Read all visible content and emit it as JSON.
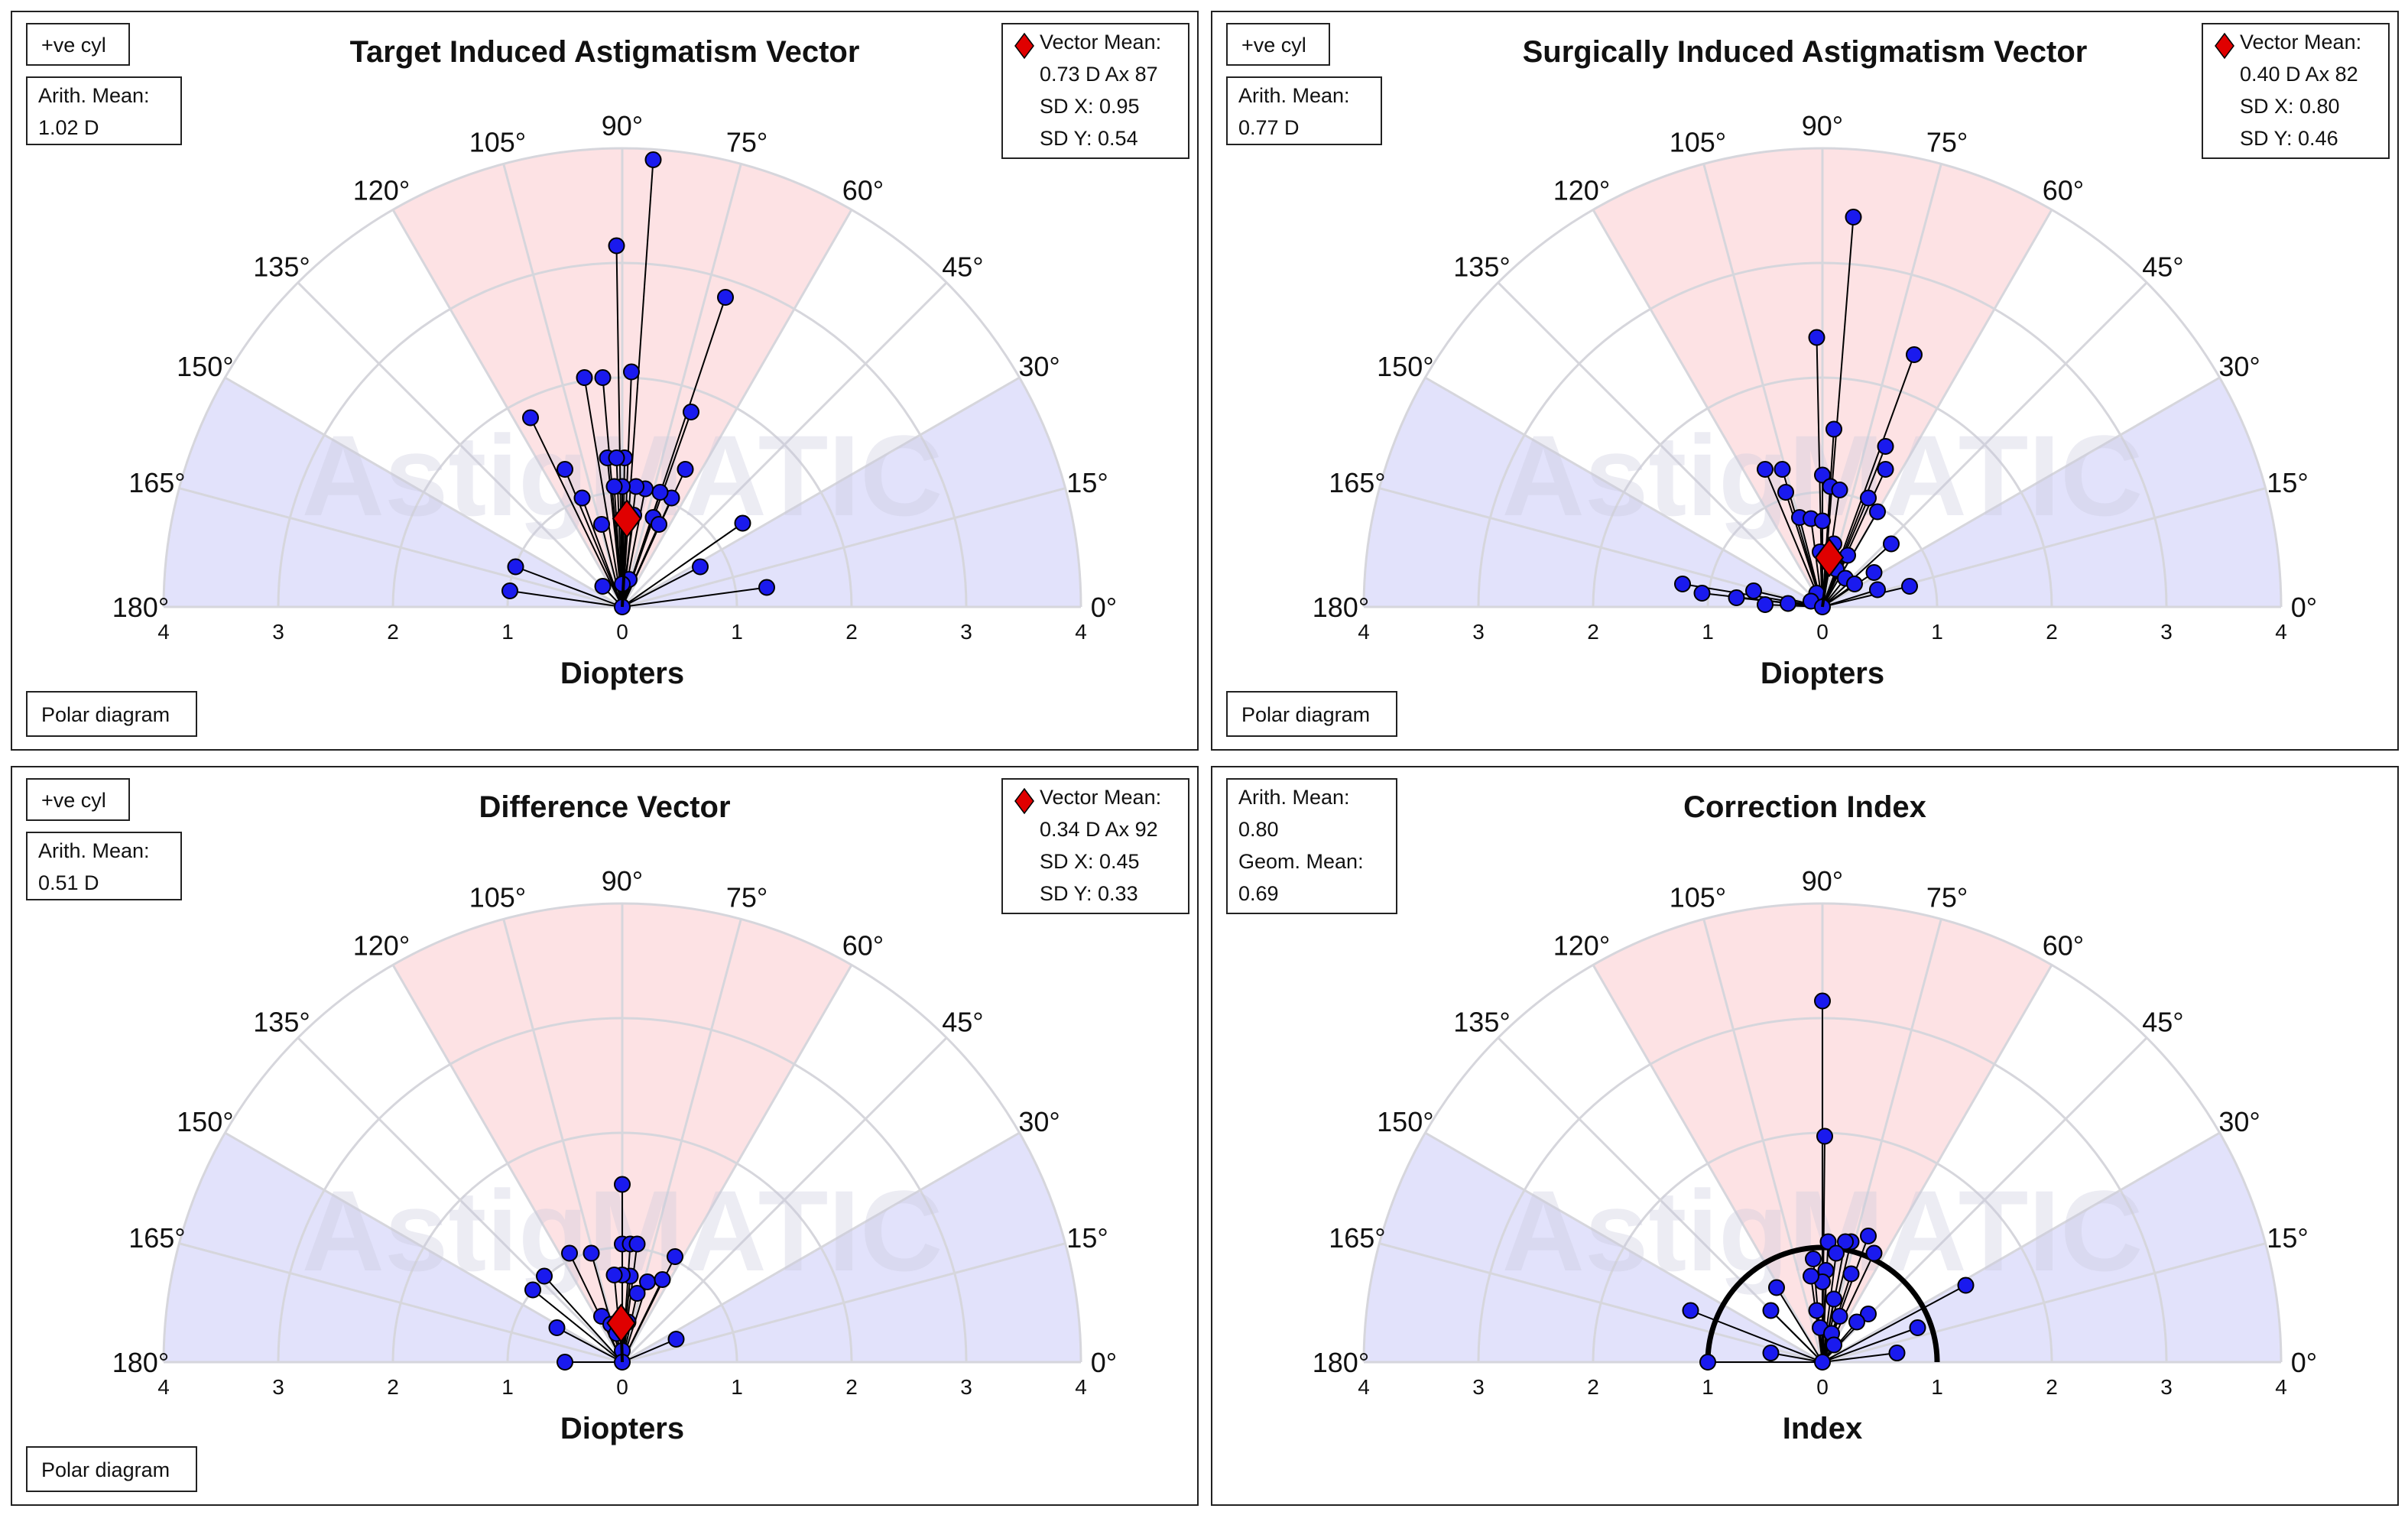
{
  "panels": [
    {
      "id": "tia",
      "title": "Target Induced Astigmatism Vector",
      "cyl_label": "+ve cyl",
      "mean_box": [
        "Arith. Mean:",
        "1.02 D"
      ],
      "vector_box": [
        "Vector Mean:",
        "0.73 D Ax 87",
        "SD X: 0.95",
        "SD Y: 0.54"
      ],
      "footer": "Polar diagram",
      "xlabel": "Diopters"
    },
    {
      "id": "sia",
      "title": "Surgically Induced Astigmatism Vector",
      "cyl_label": "+ve cyl",
      "mean_box": [
        "Arith. Mean:",
        "0.77 D"
      ],
      "vector_box": [
        "Vector Mean:",
        "0.40 D Ax 82",
        "SD X: 0.80",
        "SD Y: 0.46"
      ],
      "footer": "Polar diagram",
      "xlabel": "Diopters"
    },
    {
      "id": "dv",
      "title": "Difference Vector",
      "cyl_label": "+ve cyl",
      "mean_box": [
        "Arith. Mean:",
        "0.51 D"
      ],
      "vector_box": [
        "Vector Mean:",
        "0.34 D Ax 92",
        "SD X: 0.45",
        "SD Y: 0.33"
      ],
      "footer": "Polar diagram",
      "xlabel": "Diopters"
    },
    {
      "id": "ci",
      "title": "Correction Index",
      "mean_box": [
        "Arith. Mean:",
        "0.80",
        "Geom. Mean:",
        "0.69"
      ],
      "xlabel": "Index"
    }
  ],
  "watermark": "AstigMATIC",
  "colors": {
    "point": "#1a1aee",
    "mean_marker": "#e00000",
    "pink_sector": "#fde2e4",
    "blue_sector": "#e2e2fb",
    "grid": "#d6d6dc"
  },
  "chart_data": [
    {
      "type": "scatter",
      "coordinate_system": "polar half-plane, angle = axis in degrees (0-180), radius in diopters",
      "title": "Target Induced Astigmatism Vector",
      "xlabel": "Diopters",
      "r_range": [
        0,
        4
      ],
      "x_ticks": [
        "4",
        "3",
        "2",
        "1",
        "0",
        "1",
        "2",
        "3",
        "4"
      ],
      "angle_ticks": [
        "0°",
        "15°",
        "30°",
        "45°",
        "60°",
        "75°",
        "90°",
        "105°",
        "120°",
        "135°",
        "150°",
        "165°",
        "180°"
      ],
      "shaded_sectors": [
        {
          "from_deg": 60,
          "to_deg": 120,
          "color": "pink"
        },
        {
          "from_deg": 0,
          "to_deg": 30,
          "color": "blue"
        },
        {
          "from_deg": 150,
          "to_deg": 180,
          "color": "blue"
        }
      ],
      "points": [
        [
          0.27,
          3.9
        ],
        [
          -0.05,
          3.15
        ],
        [
          0.9,
          2.7
        ],
        [
          -0.33,
          2.0
        ],
        [
          -0.17,
          2.0
        ],
        [
          0.08,
          2.05
        ],
        [
          0.6,
          1.7
        ],
        [
          -0.8,
          1.65
        ],
        [
          -0.5,
          1.2
        ],
        [
          0.55,
          1.2
        ],
        [
          -0.13,
          1.3
        ],
        [
          0.02,
          1.3
        ],
        [
          -0.05,
          1.3
        ],
        [
          0.43,
          0.95
        ],
        [
          0.33,
          1.0
        ],
        [
          -0.35,
          0.95
        ],
        [
          0.2,
          1.03
        ],
        [
          0.12,
          1.05
        ],
        [
          0.0,
          1.05
        ],
        [
          -0.07,
          1.05
        ],
        [
          0.27,
          0.78
        ],
        [
          0.1,
          0.8
        ],
        [
          0.32,
          0.72
        ],
        [
          -0.18,
          0.72
        ],
        [
          1.05,
          0.73
        ],
        [
          -0.93,
          0.35
        ],
        [
          0.68,
          0.35
        ],
        [
          0.06,
          0.24
        ],
        [
          0.0,
          0.2
        ],
        [
          -0.17,
          0.18
        ],
        [
          -0.98,
          0.14
        ],
        [
          1.26,
          0.17
        ],
        [
          0.0,
          0.0
        ]
      ],
      "vector_mean": {
        "x": 0.04,
        "y": 0.77,
        "label": "0.73 D Ax 87"
      }
    },
    {
      "type": "scatter",
      "coordinate_system": "polar half-plane, angle = axis in degrees (0-180), radius in diopters",
      "title": "Surgically Induced Astigmatism Vector",
      "xlabel": "Diopters",
      "r_range": [
        0,
        4
      ],
      "x_ticks": [
        "4",
        "3",
        "2",
        "1",
        "0",
        "1",
        "2",
        "3",
        "4"
      ],
      "angle_ticks": [
        "0°",
        "15°",
        "30°",
        "45°",
        "60°",
        "75°",
        "90°",
        "105°",
        "120°",
        "135°",
        "150°",
        "165°",
        "180°"
      ],
      "shaded_sectors": [
        {
          "from_deg": 60,
          "to_deg": 120,
          "color": "pink"
        },
        {
          "from_deg": 0,
          "to_deg": 30,
          "color": "blue"
        },
        {
          "from_deg": 150,
          "to_deg": 180,
          "color": "blue"
        }
      ],
      "points": [
        [
          0.27,
          3.4
        ],
        [
          -0.05,
          2.35
        ],
        [
          0.8,
          2.2
        ],
        [
          0.1,
          1.55
        ],
        [
          0.55,
          1.4
        ],
        [
          0.55,
          1.2
        ],
        [
          -0.5,
          1.2
        ],
        [
          -0.35,
          1.2
        ],
        [
          0.0,
          1.15
        ],
        [
          0.07,
          1.05
        ],
        [
          0.15,
          1.02
        ],
        [
          -0.32,
          1.0
        ],
        [
          0.4,
          0.95
        ],
        [
          0.48,
          0.83
        ],
        [
          -0.2,
          0.78
        ],
        [
          -0.1,
          0.77
        ],
        [
          0.0,
          0.75
        ],
        [
          0.1,
          0.55
        ],
        [
          0.6,
          0.55
        ],
        [
          0.22,
          0.45
        ],
        [
          -0.02,
          0.48
        ],
        [
          0.12,
          0.33
        ],
        [
          0.2,
          0.25
        ],
        [
          0.45,
          0.3
        ],
        [
          0.28,
          0.2
        ],
        [
          0.48,
          0.15
        ],
        [
          -0.05,
          0.12
        ],
        [
          -0.6,
          0.14
        ],
        [
          0.76,
          0.18
        ],
        [
          -1.22,
          0.2
        ],
        [
          -1.05,
          0.12
        ],
        [
          -0.75,
          0.08
        ],
        [
          -0.5,
          0.02
        ],
        [
          -0.3,
          0.03
        ],
        [
          -0.1,
          0.05
        ],
        [
          0.0,
          0.0
        ]
      ],
      "vector_mean": {
        "x": 0.06,
        "y": 0.43,
        "label": "0.40 D Ax 82"
      }
    },
    {
      "type": "scatter",
      "coordinate_system": "polar half-plane, angle = axis in degrees (0-180), radius in diopters",
      "title": "Difference Vector",
      "xlabel": "Diopters",
      "r_range": [
        0,
        4
      ],
      "x_ticks": [
        "4",
        "3",
        "2",
        "1",
        "0",
        "1",
        "2",
        "3",
        "4"
      ],
      "angle_ticks": [
        "0°",
        "15°",
        "30°",
        "45°",
        "60°",
        "75°",
        "90°",
        "105°",
        "120°",
        "135°",
        "150°",
        "165°",
        "180°"
      ],
      "shaded_sectors": [
        {
          "from_deg": 60,
          "to_deg": 120,
          "color": "pink"
        },
        {
          "from_deg": 0,
          "to_deg": 30,
          "color": "blue"
        },
        {
          "from_deg": 150,
          "to_deg": 180,
          "color": "blue"
        }
      ],
      "points": [
        [
          0.0,
          1.55
        ],
        [
          -0.46,
          0.95
        ],
        [
          -0.27,
          0.95
        ],
        [
          0.0,
          1.03
        ],
        [
          0.07,
          1.03
        ],
        [
          0.13,
          1.03
        ],
        [
          0.46,
          0.92
        ],
        [
          0.07,
          0.75
        ],
        [
          0.0,
          0.76
        ],
        [
          -0.07,
          0.76
        ],
        [
          0.13,
          0.6
        ],
        [
          0.22,
          0.7
        ],
        [
          0.35,
          0.72
        ],
        [
          -0.68,
          0.75
        ],
        [
          -0.78,
          0.63
        ],
        [
          -0.57,
          0.3
        ],
        [
          -0.18,
          0.4
        ],
        [
          -0.1,
          0.33
        ],
        [
          0.05,
          0.35
        ],
        [
          -0.05,
          0.25
        ],
        [
          0.47,
          0.2
        ],
        [
          0.0,
          0.1
        ],
        [
          -0.5,
          0.0
        ],
        [
          0.0,
          0.0
        ]
      ],
      "vector_mean": {
        "x": -0.01,
        "y": 0.34,
        "label": "0.34 D Ax 92"
      }
    },
    {
      "type": "scatter",
      "coordinate_system": "polar half-plane, angle in degrees (0-180), radius = correction index",
      "title": "Correction Index",
      "xlabel": "Index",
      "r_range": [
        0,
        4
      ],
      "x_ticks": [
        "4",
        "3",
        "2",
        "1",
        "0",
        "1",
        "2",
        "3",
        "4"
      ],
      "angle_ticks": [
        "0°",
        "15°",
        "30°",
        "45°",
        "60°",
        "75°",
        "90°",
        "105°",
        "120°",
        "135°",
        "150°",
        "165°",
        "180°"
      ],
      "shaded_sectors": [
        {
          "from_deg": 60,
          "to_deg": 120,
          "color": "pink"
        },
        {
          "from_deg": 0,
          "to_deg": 30,
          "color": "blue"
        },
        {
          "from_deg": 150,
          "to_deg": 180,
          "color": "blue"
        }
      ],
      "reference_circle_radius": 1.0,
      "points": [
        [
          0.0,
          3.15
        ],
        [
          0.02,
          1.97
        ],
        [
          0.05,
          1.05
        ],
        [
          0.25,
          1.05
        ],
        [
          0.2,
          1.05
        ],
        [
          0.4,
          1.1
        ],
        [
          0.45,
          0.95
        ],
        [
          0.12,
          0.95
        ],
        [
          -0.08,
          0.9
        ],
        [
          0.03,
          0.8
        ],
        [
          0.25,
          0.77
        ],
        [
          0.0,
          0.7
        ],
        [
          -0.1,
          0.75
        ],
        [
          -0.4,
          0.65
        ],
        [
          0.1,
          0.55
        ],
        [
          -0.05,
          0.45
        ],
        [
          0.4,
          0.42
        ],
        [
          -0.45,
          0.45
        ],
        [
          0.15,
          0.4
        ],
        [
          0.3,
          0.35
        ],
        [
          -0.02,
          0.3
        ],
        [
          0.08,
          0.25
        ],
        [
          -1.15,
          0.45
        ],
        [
          0.83,
          0.3
        ],
        [
          1.25,
          0.67
        ],
        [
          0.1,
          0.15
        ],
        [
          -0.45,
          0.08
        ],
        [
          0.65,
          0.08
        ],
        [
          -1.0,
          0.0
        ],
        [
          0.0,
          0.0
        ]
      ]
    }
  ]
}
